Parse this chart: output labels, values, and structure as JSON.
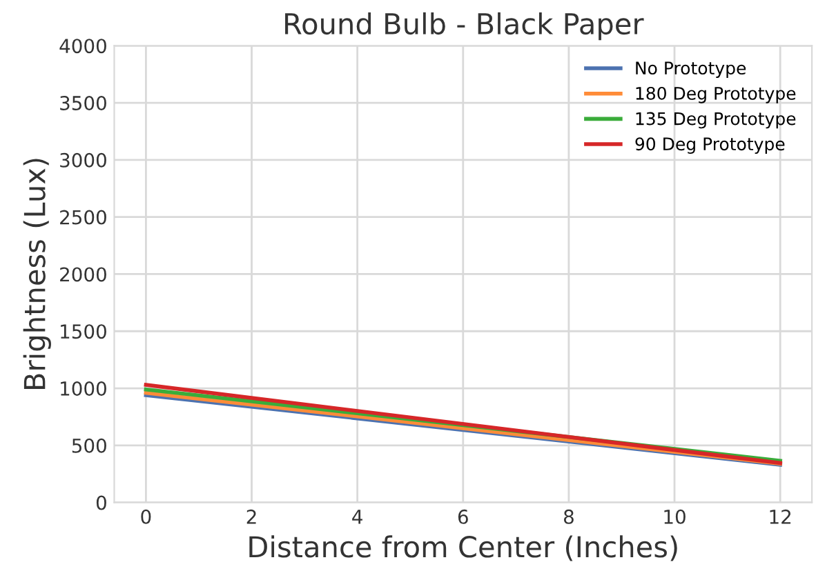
{
  "chart_data": {
    "type": "line",
    "title": "Round Bulb - Black Paper",
    "xlabel": "Distance from Center (Inches)",
    "ylabel": "Brightness (Lux)",
    "x": [
      0,
      12
    ],
    "series": [
      {
        "name": "No Prototype",
        "color": "#4c72b0",
        "values": [
          940,
          330
        ]
      },
      {
        "name": "180 Deg Prototype",
        "color": "#ff8c38",
        "values": [
          960,
          340
        ]
      },
      {
        "name": "135 Deg Prototype",
        "color": "#3aac3a",
        "values": [
          990,
          365
        ]
      },
      {
        "name": "90 Deg Prototype",
        "color": "#d62728",
        "values": [
          1030,
          345
        ]
      }
    ],
    "xlim": [
      -0.6,
      12.6
    ],
    "xticks": [
      0,
      2,
      4,
      6,
      8,
      10,
      12
    ],
    "ylim": [
      0,
      4000
    ],
    "yticks": [
      0,
      500,
      1000,
      1500,
      2000,
      2500,
      3000,
      3500,
      4000
    ],
    "grid": true,
    "legend": "top right"
  }
}
